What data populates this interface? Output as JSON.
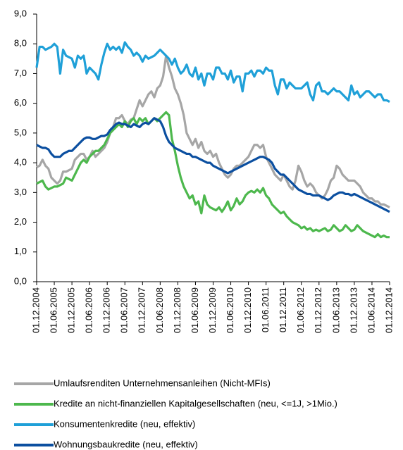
{
  "chart_data": {
    "type": "line",
    "categories": [
      "01.12.2004",
      null,
      null,
      null,
      null,
      null,
      "01.06.2005",
      null,
      null,
      null,
      null,
      null,
      "01.12.2005",
      null,
      null,
      null,
      null,
      null,
      "01.06.2006",
      null,
      null,
      null,
      null,
      null,
      "01.12.2006",
      null,
      null,
      null,
      null,
      null,
      "01.06.2007",
      null,
      null,
      null,
      null,
      null,
      "01.12.2007",
      null,
      null,
      null,
      null,
      null,
      "01.06.2008",
      null,
      null,
      null,
      null,
      null,
      "01.12.2008",
      null,
      null,
      null,
      null,
      null,
      "01.06.2009",
      null,
      null,
      null,
      null,
      null,
      "01.12.2009",
      null,
      null,
      null,
      null,
      null,
      "01.06.2010",
      null,
      null,
      null,
      null,
      null,
      "01.12.2010",
      null,
      null,
      null,
      null,
      null,
      "01.06.2011",
      null,
      null,
      null,
      null,
      null,
      "01.12.2011",
      null,
      null,
      null,
      null,
      null,
      "01.06.2012",
      null,
      null,
      null,
      null,
      null,
      "01.12.2012",
      null,
      null,
      null,
      null,
      null,
      "01.06.2013",
      null,
      null,
      null,
      null,
      null,
      "01.12.2013",
      null,
      null,
      null,
      null,
      null,
      "01.06.2014",
      null,
      null,
      null,
      null,
      null,
      "01.12.2014"
    ],
    "series": [
      {
        "name": "Umlaufsrenditen Unternehmensanleihen (Nicht-MFIs)",
        "color": "#a6a6a6",
        "values": [
          3.85,
          3.9,
          4.1,
          3.9,
          3.8,
          3.5,
          3.4,
          3.3,
          3.4,
          3.7,
          3.7,
          3.75,
          3.8,
          4.1,
          4.2,
          4.3,
          4.3,
          4.1,
          4.2,
          4.4,
          4.2,
          4.3,
          4.4,
          4.5,
          4.7,
          5.0,
          5.2,
          5.5,
          5.5,
          5.6,
          5.4,
          5.3,
          5.45,
          5.5,
          5.8,
          6.1,
          5.9,
          6.1,
          6.3,
          6.4,
          6.2,
          6.5,
          6.6,
          6.9,
          7.6,
          7.2,
          6.9,
          6.5,
          6.3,
          6.0,
          5.6,
          5.0,
          4.8,
          4.6,
          4.8,
          4.5,
          4.7,
          4.4,
          4.3,
          4.4,
          4.2,
          4.3,
          4.0,
          3.8,
          3.6,
          3.5,
          3.6,
          3.8,
          3.9,
          3.9,
          4.0,
          4.1,
          4.2,
          4.4,
          4.6,
          4.6,
          4.5,
          4.6,
          4.2,
          4.0,
          3.8,
          3.6,
          3.5,
          3.4,
          3.6,
          3.4,
          3.2,
          3.1,
          3.4,
          3.9,
          3.7,
          3.4,
          3.2,
          3.3,
          3.2,
          3.0,
          2.9,
          2.8,
          2.9,
          3.1,
          3.4,
          3.5,
          3.9,
          3.8,
          3.6,
          3.5,
          3.4,
          3.4,
          3.4,
          3.3,
          3.2,
          3.0,
          2.9,
          2.8,
          2.8,
          2.7,
          2.7,
          2.6,
          2.6,
          2.55,
          2.5
        ]
      },
      {
        "name": "Kredite an nicht-finanziellen Kapitalgesellschaften (neu, <=1J, >1Mio.)",
        "color": "#4db84d",
        "values": [
          3.3,
          3.35,
          3.4,
          3.2,
          3.1,
          3.15,
          3.2,
          3.2,
          3.25,
          3.3,
          3.5,
          3.45,
          3.4,
          3.6,
          3.8,
          4.0,
          4.1,
          4.0,
          4.2,
          4.3,
          4.4,
          4.4,
          4.5,
          4.6,
          4.8,
          5.0,
          5.1,
          5.2,
          5.3,
          5.2,
          5.4,
          5.2,
          5.4,
          5.5,
          5.3,
          5.5,
          5.4,
          5.5,
          5.3,
          5.4,
          5.5,
          5.4,
          5.5,
          5.6,
          5.7,
          5.6,
          4.8,
          4.4,
          3.9,
          3.5,
          3.2,
          3.0,
          2.8,
          2.9,
          2.6,
          2.7,
          2.3,
          2.9,
          2.6,
          2.5,
          2.45,
          2.4,
          2.5,
          2.35,
          2.5,
          2.7,
          2.4,
          2.55,
          2.8,
          2.6,
          2.7,
          2.9,
          3.0,
          3.05,
          3.0,
          3.1,
          3.0,
          3.15,
          2.9,
          2.8,
          2.6,
          2.5,
          2.4,
          2.3,
          2.35,
          2.2,
          2.1,
          2.0,
          1.95,
          1.9,
          1.8,
          1.85,
          1.75,
          1.8,
          1.7,
          1.75,
          1.7,
          1.75,
          1.8,
          1.7,
          1.75,
          1.9,
          1.8,
          1.7,
          1.75,
          1.9,
          1.8,
          1.7,
          1.75,
          1.9,
          1.8,
          1.7,
          1.65,
          1.6,
          1.55,
          1.5,
          1.6,
          1.5,
          1.55,
          1.5,
          1.5
        ]
      },
      {
        "name": "Konsumentenkredite (neu, effektiv)",
        "color": "#1fa0d8",
        "values": [
          7.2,
          7.9,
          7.9,
          7.8,
          7.85,
          7.9,
          8.0,
          7.9,
          7.0,
          7.8,
          7.6,
          7.55,
          7.5,
          7.2,
          7.6,
          7.5,
          7.6,
          7.0,
          7.2,
          7.1,
          7.0,
          6.8,
          7.3,
          7.7,
          8.0,
          7.8,
          7.9,
          7.8,
          7.9,
          7.7,
          8.05,
          7.9,
          7.8,
          7.6,
          7.7,
          7.6,
          7.4,
          7.6,
          7.5,
          7.55,
          7.6,
          7.7,
          7.8,
          7.7,
          7.6,
          7.5,
          7.3,
          7.5,
          7.2,
          7.0,
          7.1,
          7.3,
          7.0,
          6.9,
          7.2,
          6.8,
          7.0,
          6.6,
          7.0,
          7.0,
          6.8,
          7.2,
          7.2,
          7.0,
          7.0,
          6.8,
          7.1,
          6.7,
          6.9,
          6.9,
          6.4,
          7.0,
          7.0,
          7.1,
          6.9,
          7.1,
          7.1,
          7.0,
          7.2,
          7.1,
          7.1,
          6.6,
          6.3,
          6.8,
          6.8,
          6.5,
          6.7,
          6.6,
          6.5,
          6.5,
          6.5,
          6.6,
          6.7,
          6.3,
          6.1,
          6.6,
          6.7,
          6.4,
          6.4,
          6.3,
          6.4,
          6.5,
          6.4,
          6.4,
          6.3,
          6.2,
          6.1,
          6.6,
          6.3,
          6.4,
          6.2,
          6.3,
          6.4,
          6.4,
          6.3,
          6.2,
          6.3,
          6.3,
          6.1,
          6.1,
          6.05
        ]
      },
      {
        "name": "Wohnungsbaukredite (neu, effektiv)",
        "color": "#0b4fa0",
        "values": [
          4.6,
          4.55,
          4.5,
          4.5,
          4.45,
          4.3,
          4.2,
          4.2,
          4.2,
          4.3,
          4.35,
          4.4,
          4.4,
          4.5,
          4.6,
          4.7,
          4.8,
          4.85,
          4.85,
          4.8,
          4.8,
          4.85,
          4.9,
          4.9,
          4.95,
          5.1,
          5.2,
          5.3,
          5.35,
          5.3,
          5.3,
          5.25,
          5.2,
          5.3,
          5.25,
          5.2,
          5.3,
          5.35,
          5.3,
          5.4,
          5.5,
          5.45,
          5.4,
          5.2,
          4.9,
          4.7,
          4.6,
          4.5,
          4.45,
          4.4,
          4.35,
          4.3,
          4.3,
          4.2,
          4.2,
          4.15,
          4.1,
          4.05,
          4.0,
          4.0,
          3.9,
          3.85,
          3.8,
          3.75,
          3.7,
          3.65,
          3.7,
          3.75,
          3.8,
          3.85,
          3.9,
          3.95,
          4.0,
          4.05,
          4.1,
          4.15,
          4.2,
          4.2,
          4.15,
          4.1,
          4.0,
          3.8,
          3.7,
          3.6,
          3.6,
          3.5,
          3.4,
          3.3,
          3.2,
          3.1,
          3.05,
          3.0,
          2.95,
          2.95,
          2.9,
          2.9,
          2.9,
          2.85,
          2.8,
          2.75,
          2.8,
          2.9,
          2.95,
          3.0,
          3.0,
          2.95,
          2.95,
          2.9,
          2.95,
          2.9,
          2.85,
          2.8,
          2.75,
          2.7,
          2.65,
          2.6,
          2.55,
          2.5,
          2.45,
          2.4,
          2.35
        ]
      }
    ],
    "ylim": [
      0,
      9
    ],
    "yticks": [
      {
        "value": 0,
        "label": "0,0"
      },
      {
        "value": 1,
        "label": "1,0"
      },
      {
        "value": 2,
        "label": "2,0"
      },
      {
        "value": 3,
        "label": "3,0"
      },
      {
        "value": 4,
        "label": "4,0"
      },
      {
        "value": 5,
        "label": "5,0"
      },
      {
        "value": 6,
        "label": "6,0"
      },
      {
        "value": 7,
        "label": "7,0"
      },
      {
        "value": 8,
        "label": "8,0"
      },
      {
        "value": 9,
        "label": "9,0"
      }
    ],
    "grid": false
  }
}
